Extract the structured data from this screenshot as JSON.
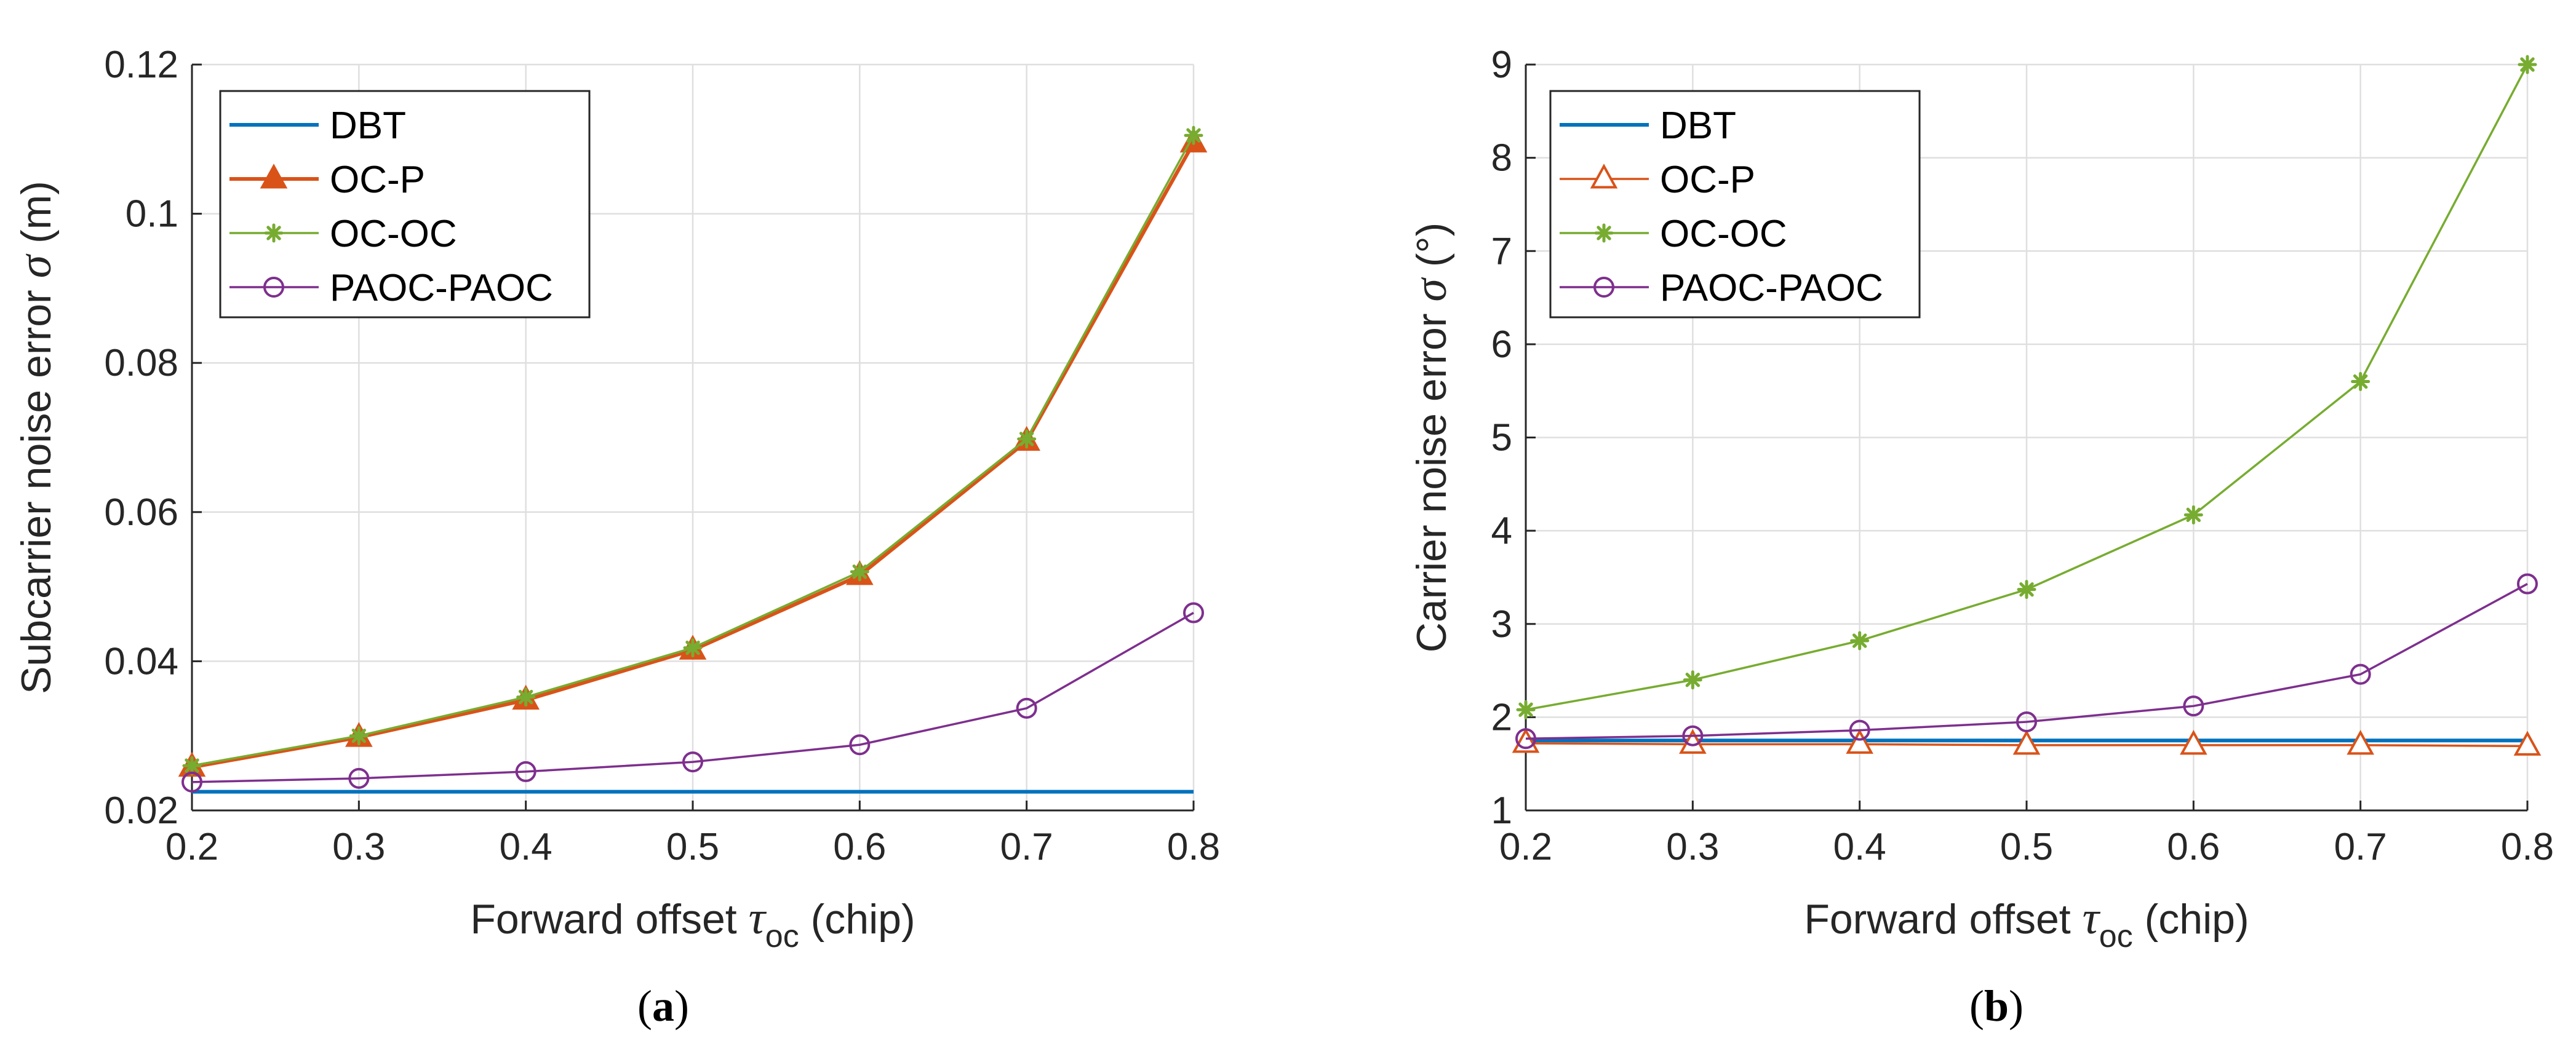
{
  "chart_data": [
    {
      "type": "line",
      "panel_label": "a",
      "xlabel_main": "Forward offset ",
      "xlabel_symbol": "τ",
      "xlabel_sub": "oc",
      "xlabel_unit": " (chip)",
      "ylabel_main": "Subcarrier noise error ",
      "ylabel_symbol": "σ",
      "ylabel_unit": " (m)",
      "xlim": [
        0.2,
        0.8
      ],
      "ylim": [
        0.02,
        0.12
      ],
      "xticks": [
        "0.2",
        "0.3",
        "0.4",
        "0.5",
        "0.6",
        "0.7",
        "0.8"
      ],
      "yticks": [
        "0.02",
        "0.04",
        "0.06",
        "0.08",
        "0.1",
        "0.12"
      ],
      "grid": true,
      "legend_position": "top-left",
      "x": [
        0.2,
        0.3,
        0.4,
        0.5,
        0.6,
        0.7,
        0.8
      ],
      "series": [
        {
          "name": "DBT",
          "values": [
            0.0225,
            0.0225,
            0.0225,
            0.0225,
            0.0225,
            0.0225,
            0.0225
          ],
          "color": "#0072BD",
          "marker": "none",
          "width": 6
        },
        {
          "name": "OC-P",
          "values": [
            0.0258,
            0.0298,
            0.0348,
            0.0415,
            0.0515,
            0.0695,
            0.1095
          ],
          "color": "#D95319",
          "marker": "triangle-filled",
          "width": 6
        },
        {
          "name": "OC-OC",
          "values": [
            0.026,
            0.03,
            0.0352,
            0.0418,
            0.052,
            0.0698,
            0.1105
          ],
          "color": "#77AC30",
          "marker": "star",
          "width": 3.5
        },
        {
          "name": "PAOC-PAOC",
          "values": [
            0.0238,
            0.0243,
            0.0252,
            0.0265,
            0.0288,
            0.0337,
            0.0465
          ],
          "color": "#7E2F8E",
          "marker": "circle",
          "width": 3.5
        }
      ]
    },
    {
      "type": "line",
      "panel_label": "b",
      "xlabel_main": "Forward offset ",
      "xlabel_symbol": "τ",
      "xlabel_sub": "oc",
      "xlabel_unit": " (chip)",
      "ylabel_main": "Carrier noise error ",
      "ylabel_symbol": "σ",
      "ylabel_unit": " (°)",
      "xlim": [
        0.2,
        0.8
      ],
      "ylim": [
        1,
        9
      ],
      "xticks": [
        "0.2",
        "0.3",
        "0.4",
        "0.5",
        "0.6",
        "0.7",
        "0.8"
      ],
      "yticks": [
        "1",
        "2",
        "3",
        "4",
        "5",
        "6",
        "7",
        "8",
        "9"
      ],
      "grid": true,
      "legend_position": "top-left",
      "x": [
        0.2,
        0.3,
        0.4,
        0.5,
        0.6,
        0.7,
        0.8
      ],
      "series": [
        {
          "name": "DBT",
          "values": [
            1.75,
            1.75,
            1.75,
            1.75,
            1.75,
            1.75,
            1.75
          ],
          "color": "#0072BD",
          "marker": "none",
          "width": 6
        },
        {
          "name": "OC-P",
          "values": [
            1.72,
            1.71,
            1.71,
            1.7,
            1.7,
            1.7,
            1.69
          ],
          "color": "#D95319",
          "marker": "triangle-open",
          "width": 3.5
        },
        {
          "name": "OC-OC",
          "values": [
            2.08,
            2.4,
            2.82,
            3.37,
            4.17,
            5.6,
            9.0
          ],
          "color": "#77AC30",
          "marker": "star",
          "width": 3.5
        },
        {
          "name": "PAOC-PAOC",
          "values": [
            1.77,
            1.8,
            1.86,
            1.95,
            2.12,
            2.46,
            3.43
          ],
          "color": "#7E2F8E",
          "marker": "circle",
          "width": 3.5
        }
      ]
    }
  ]
}
